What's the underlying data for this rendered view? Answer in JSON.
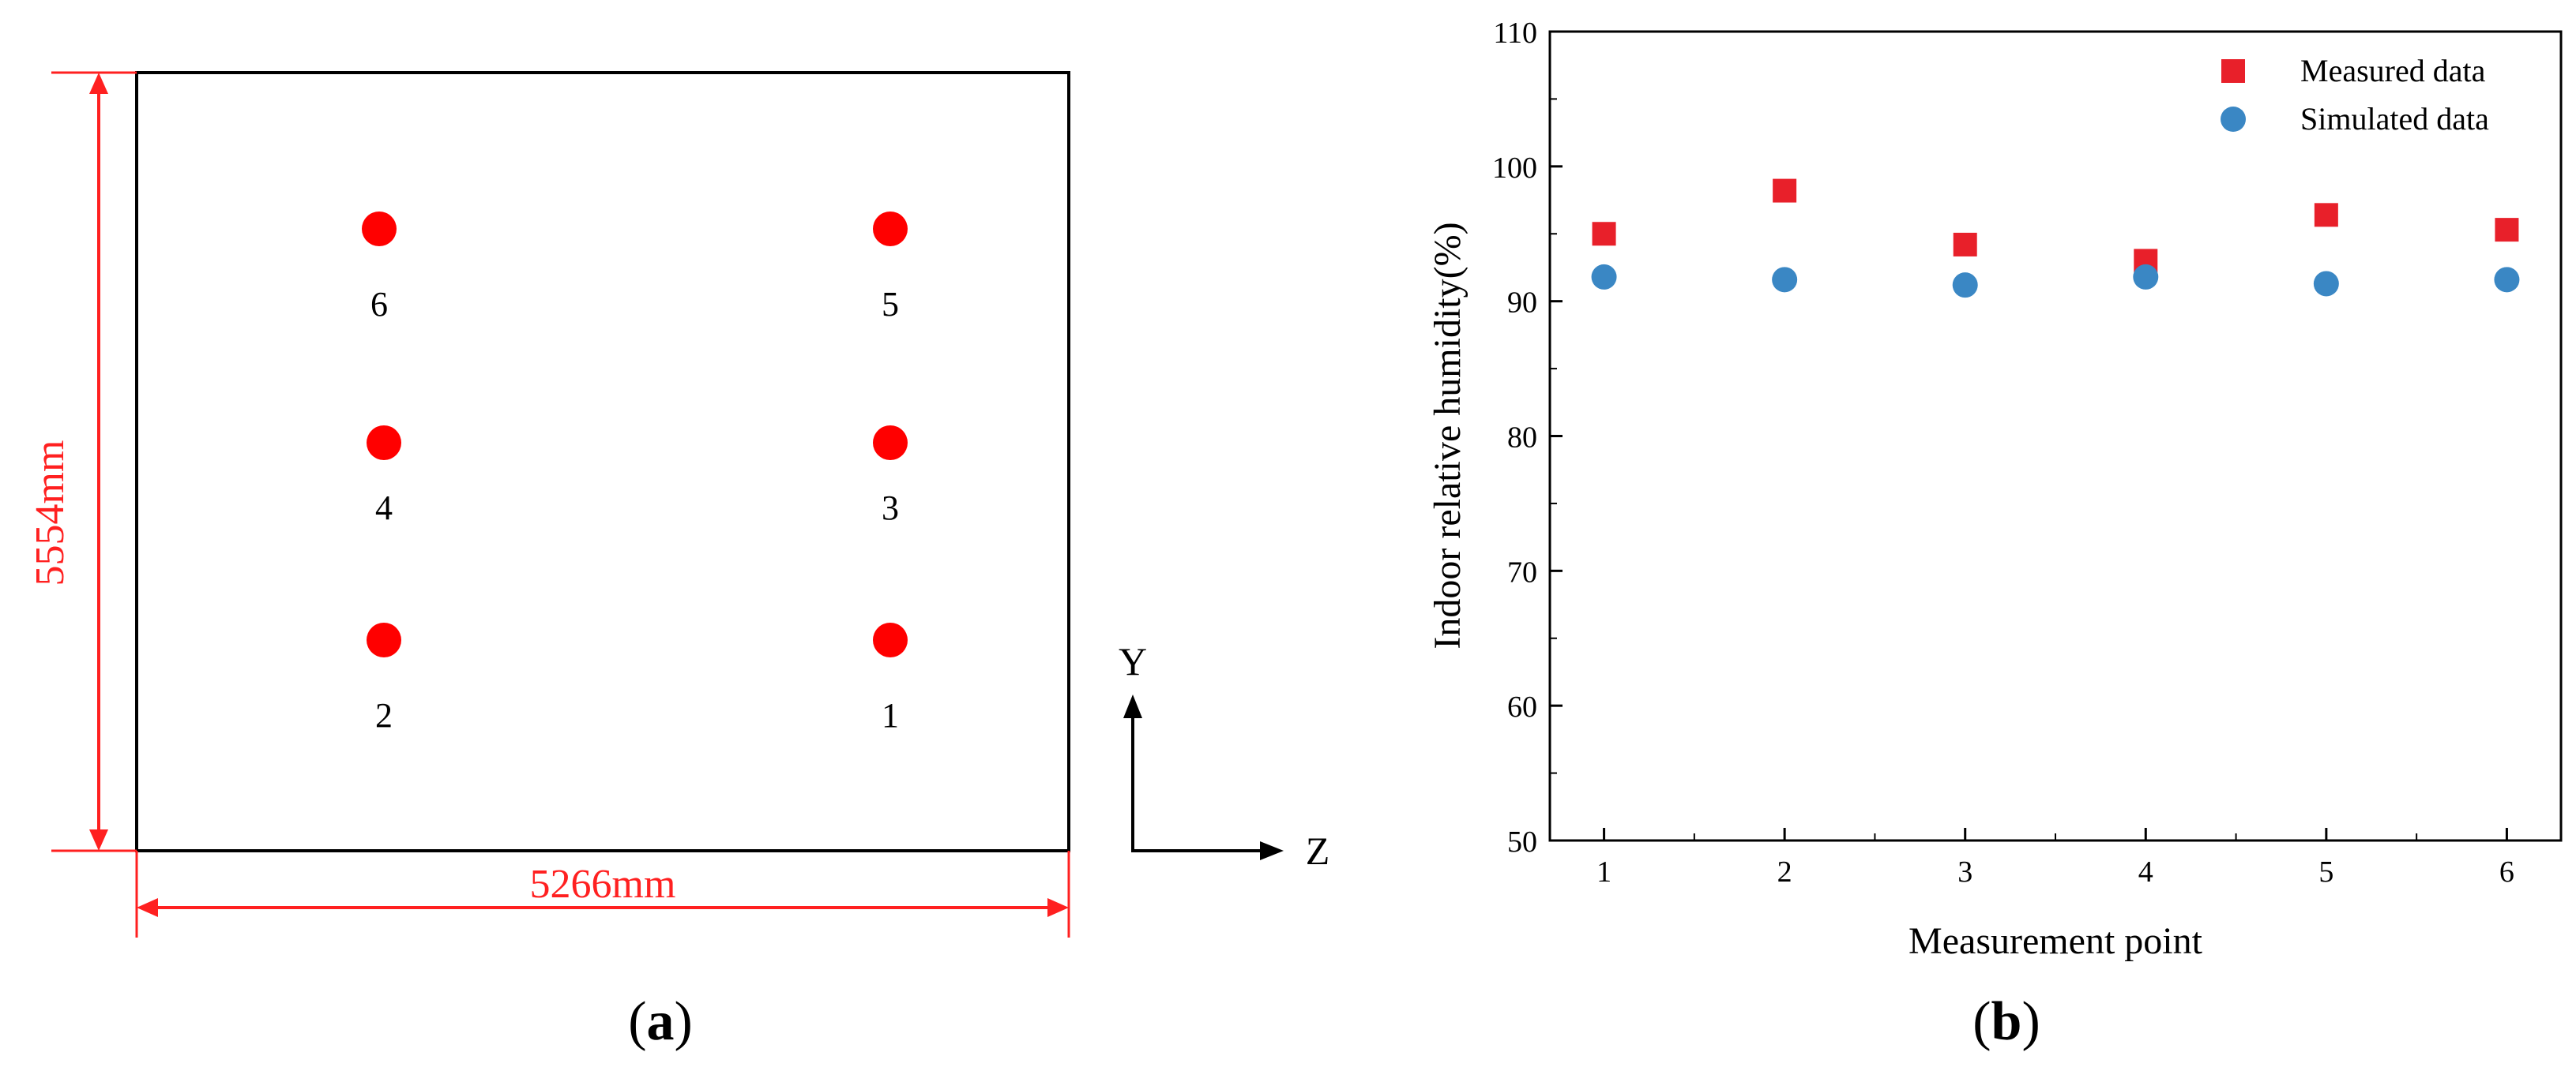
{
  "panel_a": {
    "caption_letter": "a",
    "width_label": "5266mm",
    "height_label": "5554mm",
    "axis_y_label": "Y",
    "axis_z_label": "Z",
    "point_color": "#ff0000",
    "dimension_color": "#ff0000",
    "points": [
      {
        "label": "1"
      },
      {
        "label": "2"
      },
      {
        "label": "3"
      },
      {
        "label": "4"
      },
      {
        "label": "5"
      },
      {
        "label": "6"
      }
    ]
  },
  "panel_b": {
    "caption_letter": "b"
  },
  "chart_data": {
    "type": "scatter",
    "xlabel": "Measurement point",
    "ylabel": "Indoor relative humidity(%)",
    "xlim": [
      0.7,
      6.3
    ],
    "ylim": [
      50,
      110
    ],
    "x_ticks": [
      1,
      2,
      3,
      4,
      5,
      6
    ],
    "y_ticks": [
      50,
      60,
      70,
      80,
      90,
      100,
      110
    ],
    "legend_position": "top-right",
    "grid": false,
    "series": [
      {
        "name": "Measured data",
        "marker": "square",
        "color": "#e8202a",
        "x": [
          1,
          2,
          3,
          4,
          5,
          6
        ],
        "y": [
          95.0,
          98.2,
          94.2,
          93.0,
          96.4,
          95.3
        ]
      },
      {
        "name": "Simulated data",
        "marker": "circle",
        "color": "#3a87c4",
        "x": [
          1,
          2,
          3,
          4,
          5,
          6
        ],
        "y": [
          91.8,
          91.6,
          91.2,
          91.8,
          91.3,
          91.6
        ]
      }
    ]
  }
}
